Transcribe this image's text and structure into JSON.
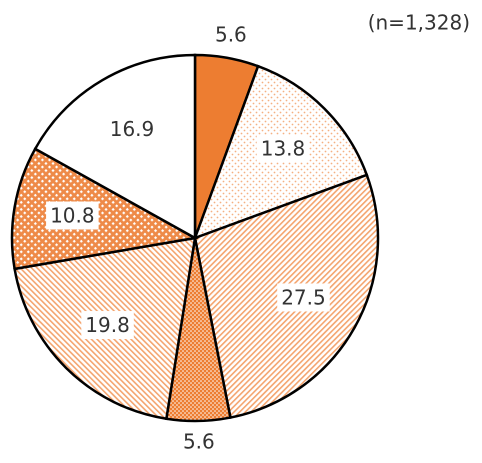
{
  "chart_data": {
    "type": "pie",
    "annotation": "(n=1,328)",
    "values": [
      5.6,
      13.8,
      27.5,
      5.6,
      19.8,
      10.8,
      16.9
    ],
    "colors": [
      "#ED7D31",
      "#F4B183",
      "#F4A46E",
      "#ED7D31",
      "#F4A46E",
      "#EE8A48",
      "#ffffff"
    ],
    "patterns": [
      "solid",
      "sparse-dots",
      "diagonal-right",
      "dense-dots",
      "diagonal-left",
      "crosshatch",
      "solid"
    ]
  }
}
